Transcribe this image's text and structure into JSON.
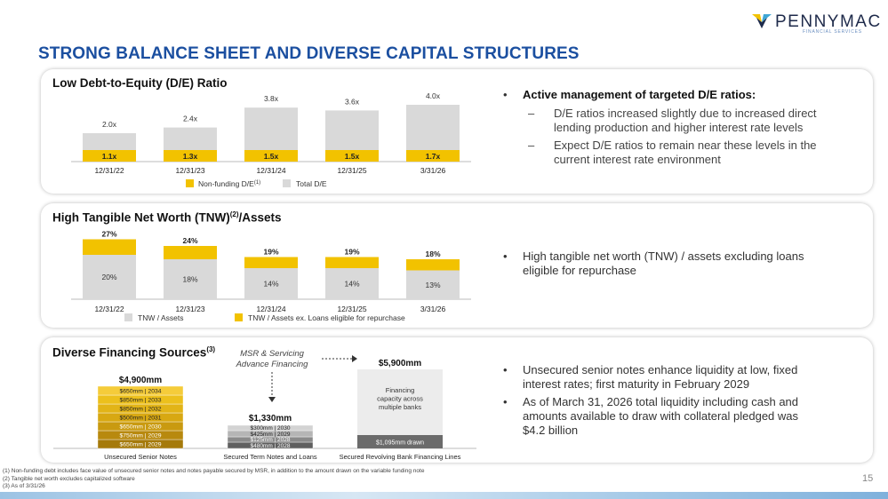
{
  "logo": {
    "name": "PENNYMAC",
    "tm": "®",
    "sub": "FINANCIAL SERVICES"
  },
  "title": "STRONG BALANCE SHEET AND DIVERSE CAPITAL STRUCTURES",
  "colors": {
    "gold": "#f2c200",
    "gray": "#d9d9d9",
    "title_blue": "#1b4fa0"
  },
  "de_section": {
    "title": "Low Debt-to-Equity (D/E) Ratio",
    "chart_data": {
      "type": "bar",
      "categories": [
        "12/31/22",
        "12/31/23",
        "12/31/24",
        "12/31/25",
        "3/31/26"
      ],
      "series": [
        {
          "name": "Non-funding D/E(1)",
          "values": [
            1.1,
            1.3,
            1.5,
            1.5,
            1.7
          ],
          "labels": [
            "1.1x",
            "1.3x",
            "1.5x",
            "1.5x",
            "1.7x"
          ]
        },
        {
          "name": "Total D/E",
          "values": [
            2.0,
            2.4,
            3.8,
            3.6,
            4.0
          ],
          "labels": [
            "2.0x",
            "2.4x",
            "3.8x",
            "3.6x",
            "4.0x"
          ]
        }
      ],
      "legend": [
        "Non-funding D/E",
        "Total D/E"
      ],
      "legend_sup": "(1)"
    },
    "bullets": {
      "main": "Active management of targeted D/E ratios:",
      "sub": [
        [
          "D/E ratios increased slightly due to increased direct",
          "lending production and higher interest rate levels"
        ],
        [
          "Expect D/E ratios to remain near these levels in the",
          "current interest rate environment"
        ]
      ]
    }
  },
  "tnw_section": {
    "title": "High Tangible Net Worth (TNW)",
    "title_sup": "(2)",
    "title_suffix": "/Assets",
    "chart_data": {
      "type": "bar",
      "categories": [
        "12/31/22",
        "12/31/23",
        "12/31/24",
        "12/31/25",
        "3/31/26"
      ],
      "series": [
        {
          "name": "TNW / Assets",
          "values": [
            20,
            18,
            14,
            14,
            13
          ],
          "labels": [
            "20%",
            "18%",
            "14%",
            "14%",
            "13%"
          ]
        },
        {
          "name": "TNW / Assets ex. Loans eligible for repurchase",
          "values": [
            27,
            24,
            19,
            19,
            18
          ],
          "labels": [
            "27%",
            "24%",
            "19%",
            "19%",
            "18%"
          ]
        }
      ]
    },
    "bullet": [
      "High tangible net worth (TNW) / assets excluding loans",
      "eligible for repurchase"
    ]
  },
  "fin_section": {
    "title": "Diverse Financing Sources",
    "title_sup": "(3)",
    "msr_label": [
      "MSR & Servicing",
      "Advance Financing"
    ],
    "chart_data": {
      "type": "bar",
      "categories": [
        "Unsecured Senior Notes",
        "Secured Term Notes and Loans",
        "Secured Revolving Bank Financing Lines"
      ],
      "totals": [
        "$4,900mm",
        "$1,330mm",
        "$5,900mm"
      ],
      "unsecured_tranches": [
        "$650mm | 2029",
        "$750mm | 2029",
        "$650mm | 2030",
        "$500mm | 2031",
        "$850mm | 2032",
        "$850mm | 2033",
        "$650mm | 2034"
      ],
      "secured_tranches": [
        "$480mm | 2028",
        "$125mm | 2028",
        "$425mm | 2029",
        "$300mm | 2030"
      ],
      "revolving_drawn": "$1,095mm drawn",
      "revolving_capacity": [
        "Financing",
        "capacity across",
        "multiple banks"
      ]
    },
    "bullets": [
      [
        "Unsecured senior notes enhance liquidity at low, fixed",
        "interest rates; first maturity in February 2029"
      ],
      [
        "As of March 31, 2026 total liquidity including cash and",
        "amounts available to draw with collateral pledged was",
        "$4.2 billion"
      ]
    ]
  },
  "footnotes": [
    "(1) Non-funding debt includes face value of unsecured senior notes and notes payable secured by MSR, in addition to the amount drawn on the variable funding note",
    "(2) Tangible net worth excludes capitalized software",
    "(3) As of 3/31/26"
  ],
  "page_number": "15"
}
